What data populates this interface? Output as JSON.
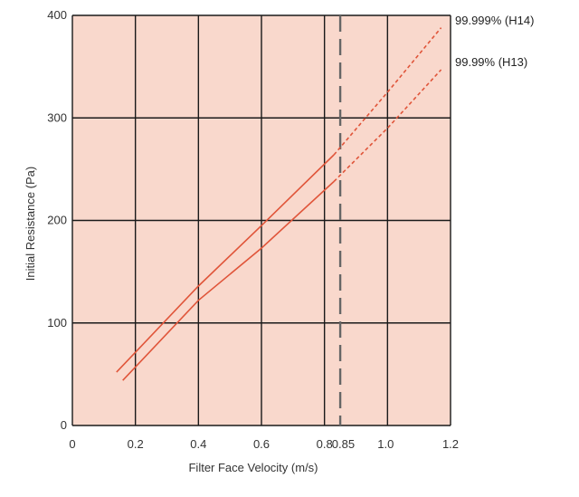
{
  "colors": {
    "plot_background": "#f9d8cc",
    "grid": "#1a1a1a",
    "series_line": "#e0553a",
    "reference_line": "#666666"
  },
  "chart_data": {
    "type": "line",
    "title": "",
    "xlabel": "Filter Face Velocity (m/s)",
    "ylabel": "Initial Resistance (Pa)",
    "xlim": [
      0,
      1.2
    ],
    "ylim": [
      0,
      400
    ],
    "grid": true,
    "x_tick_values": [
      0,
      0.2,
      0.4,
      0.6,
      0.8,
      0.85,
      1.0,
      1.2
    ],
    "x_tick_labels": [
      "0",
      "0.2",
      "0.4",
      "0.6",
      "0.8",
      "0.85",
      "1.0",
      "1.2"
    ],
    "y_tick_values": [
      0,
      100,
      200,
      300,
      400
    ],
    "y_tick_labels": [
      "0",
      "100",
      "200",
      "300",
      "400"
    ],
    "reference_line": {
      "x": 0.85,
      "style": "dashed"
    },
    "legend_position": "right",
    "series": [
      {
        "name": "99.999% (H14)",
        "solid": [
          [
            0.14,
            52
          ],
          [
            0.4,
            136
          ],
          [
            0.6,
            195
          ],
          [
            0.83,
            264
          ]
        ],
        "dashed": [
          [
            0.83,
            264
          ],
          [
            1.0,
            325
          ],
          [
            1.17,
            388
          ]
        ]
      },
      {
        "name": "99.99% (H13)",
        "solid": [
          [
            0.16,
            44
          ],
          [
            0.4,
            122
          ],
          [
            0.6,
            173
          ],
          [
            0.83,
            238
          ]
        ],
        "dashed": [
          [
            0.83,
            238
          ],
          [
            1.0,
            290
          ],
          [
            1.17,
            347
          ]
        ]
      }
    ]
  }
}
